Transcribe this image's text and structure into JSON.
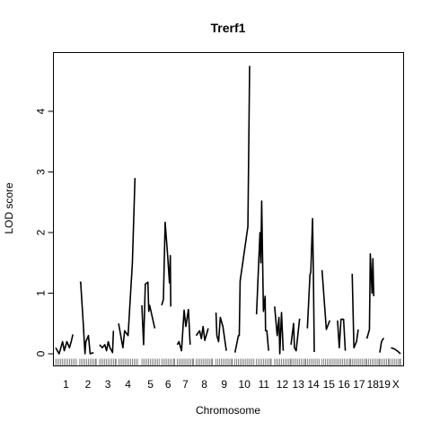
{
  "chart_data": {
    "type": "line",
    "title": "Trerf1",
    "xlabel": "Chromosome",
    "ylabel": "LOD score",
    "ylim": [
      -0.2,
      4.97
    ],
    "y_ticks": [
      0,
      1,
      2,
      3,
      4
    ],
    "grid": false,
    "legend": "none",
    "line_color": "#000000",
    "chromosomes": [
      {
        "label": "1",
        "start": 0,
        "end": 24,
        "points": [
          [
            0,
            0.1
          ],
          [
            4,
            0.0
          ],
          [
            8,
            0.2
          ],
          [
            10,
            0.05
          ],
          [
            13,
            0.2
          ],
          [
            16,
            0.1
          ],
          [
            18,
            0.2
          ],
          [
            20,
            0.32
          ]
        ]
      },
      {
        "label": "2",
        "start": 28,
        "end": 47,
        "points": [
          [
            0,
            1.18
          ],
          [
            1,
            1.18
          ],
          [
            4,
            0.5
          ],
          [
            6,
            0.0
          ],
          [
            7,
            0.2
          ],
          [
            10,
            0.3
          ],
          [
            12,
            0.0
          ],
          [
            16,
            0.02
          ]
        ]
      },
      {
        "label": "3",
        "start": 51,
        "end": 70,
        "points": [
          [
            0,
            0.15
          ],
          [
            3,
            0.1
          ],
          [
            6,
            0.15
          ],
          [
            8,
            0.05
          ],
          [
            10,
            0.2
          ],
          [
            12,
            0.1
          ],
          [
            15,
            0.02
          ],
          [
            16,
            0.38
          ]
        ]
      },
      {
        "label": "4",
        "start": 73,
        "end": 95,
        "points": [
          [
            0,
            0.5
          ],
          [
            5,
            0.1
          ],
          [
            7,
            0.38
          ],
          [
            11,
            0.3
          ],
          [
            16,
            1.5
          ],
          [
            19,
            2.9
          ]
        ]
      },
      {
        "label": "5",
        "start": 100,
        "end": 120,
        "points": [
          [
            0,
            0.8
          ],
          [
            2,
            0.15
          ],
          [
            4,
            1.15
          ],
          [
            7,
            1.18
          ],
          [
            8,
            0.7
          ],
          [
            9,
            0.8
          ],
          [
            15,
            0.42
          ]
        ]
      },
      {
        "label": "6",
        "start": 123,
        "end": 138,
        "points": [
          [
            0,
            0.8
          ],
          [
            2,
            0.9
          ],
          [
            4,
            2.17
          ],
          [
            7,
            1.6
          ],
          [
            9,
            1.17
          ],
          [
            10,
            1.62
          ],
          [
            10.5,
            0.78
          ]
        ]
      },
      {
        "label": "7",
        "start": 141,
        "end": 160,
        "points": [
          [
            0,
            0.15
          ],
          [
            2,
            0.2
          ],
          [
            5,
            0.05
          ],
          [
            8,
            0.72
          ],
          [
            10,
            0.45
          ],
          [
            13,
            0.73
          ],
          [
            15,
            0.15
          ]
        ]
      },
      {
        "label": "8",
        "start": 163,
        "end": 182,
        "points": [
          [
            0,
            0.3
          ],
          [
            4,
            0.38
          ],
          [
            6,
            0.25
          ],
          [
            8,
            0.45
          ],
          [
            10,
            0.22
          ],
          [
            14,
            0.42
          ]
        ]
      },
      {
        "label": "9",
        "start": 186,
        "end": 205,
        "points": [
          [
            0,
            0.68
          ],
          [
            1,
            0.3
          ],
          [
            3,
            0.2
          ],
          [
            5,
            0.6
          ],
          [
            8,
            0.45
          ],
          [
            12,
            0.05
          ]
        ]
      },
      {
        "label": "10",
        "start": 208,
        "end": 230,
        "points": [
          [
            0,
            0.02
          ],
          [
            4,
            0.3
          ],
          [
            5,
            0.3
          ],
          [
            6,
            1.2
          ],
          [
            15,
            2.1
          ],
          [
            17,
            4.75
          ]
        ]
      },
      {
        "label": "11",
        "start": 233,
        "end": 250,
        "points": [
          [
            0,
            0.65
          ],
          [
            4,
            2.0
          ],
          [
            5,
            1.5
          ],
          [
            6,
            2.52
          ],
          [
            8,
            0.7
          ],
          [
            10,
            0.95
          ],
          [
            10.5,
            0.38
          ],
          [
            12,
            0.38
          ],
          [
            14,
            0.05
          ]
        ]
      },
      {
        "label": "12",
        "start": 254,
        "end": 272,
        "points": [
          [
            0,
            0.78
          ],
          [
            3,
            0.3
          ],
          [
            5,
            0.6
          ],
          [
            6,
            0.0
          ],
          [
            8,
            0.68
          ],
          [
            10,
            0.05
          ]
        ]
      },
      {
        "label": "13",
        "start": 273,
        "end": 290,
        "points": [
          [
            0,
            0.15
          ],
          [
            3,
            0.5
          ],
          [
            4,
            0.1
          ],
          [
            6,
            0.05
          ],
          [
            10,
            0.58
          ]
        ]
      },
      {
        "label": "14",
        "start": 292,
        "end": 306,
        "points": [
          [
            0,
            0.42
          ],
          [
            3,
            1.3
          ],
          [
            4,
            1.35
          ],
          [
            6,
            2.23
          ],
          [
            7,
            1.3
          ],
          [
            8,
            0.03
          ]
        ]
      },
      {
        "label": "15",
        "start": 309,
        "end": 325,
        "points": [
          [
            0,
            1.38
          ],
          [
            5,
            0.4
          ],
          [
            9,
            0.55
          ]
        ]
      },
      {
        "label": "16",
        "start": 327,
        "end": 342,
        "points": [
          [
            0,
            0.55
          ],
          [
            2,
            0.1
          ],
          [
            4,
            0.57
          ],
          [
            7,
            0.57
          ],
          [
            9,
            0.05
          ]
        ]
      },
      {
        "label": "17",
        "start": 344,
        "end": 360,
        "points": [
          [
            0,
            1.32
          ],
          [
            2,
            0.1
          ],
          [
            5,
            0.2
          ],
          [
            7,
            0.4
          ]
        ]
      },
      {
        "label": "18",
        "start": 361,
        "end": 375,
        "points": [
          [
            0,
            0.25
          ],
          [
            3,
            0.4
          ],
          [
            4,
            1.65
          ],
          [
            6,
            1.0
          ],
          [
            7,
            1.57
          ],
          [
            8,
            0.95
          ]
        ]
      },
      {
        "label": "19",
        "start": 376,
        "end": 387,
        "points": [
          [
            0,
            0.02
          ],
          [
            2,
            0.2
          ],
          [
            4,
            0.25
          ],
          [
            5,
            0.25
          ]
        ]
      },
      {
        "label": "X",
        "start": 389,
        "end": 400,
        "points": [
          [
            0,
            0.1
          ],
          [
            4,
            0.08
          ],
          [
            8,
            0.04
          ],
          [
            11,
            0.0
          ]
        ]
      }
    ],
    "marker_positions": [
      0,
      2,
      4,
      6,
      8,
      10,
      12,
      14,
      16,
      18,
      20,
      22,
      24,
      28,
      30,
      32,
      34,
      36,
      38,
      40,
      42,
      44,
      46,
      47,
      51,
      53,
      55,
      57,
      59,
      61,
      63,
      65,
      67,
      69,
      70,
      73,
      75,
      77,
      79,
      81,
      83,
      85,
      87,
      89,
      91,
      93,
      95,
      100,
      102,
      104,
      106,
      108,
      110,
      112,
      114,
      116,
      118,
      120,
      123,
      125,
      127,
      129,
      131,
      133,
      135,
      137,
      138,
      141,
      143,
      145,
      147,
      149,
      151,
      153,
      155,
      157,
      159,
      160,
      163,
      165,
      167,
      169,
      171,
      173,
      175,
      177,
      179,
      181,
      182,
      186,
      188,
      190,
      192,
      194,
      196,
      198,
      200,
      202,
      204,
      205,
      208,
      210,
      212,
      214,
      216,
      218,
      220,
      222,
      224,
      226,
      228,
      230,
      233,
      235,
      237,
      239,
      241,
      243,
      245,
      247,
      249,
      250,
      254,
      256,
      258,
      260,
      262,
      264,
      266,
      268,
      270,
      272,
      273,
      275,
      277,
      279,
      281,
      283,
      285,
      287,
      289,
      290,
      292,
      294,
      296,
      298,
      300,
      302,
      304,
      306,
      309,
      311,
      313,
      315,
      317,
      319,
      321,
      323,
      325,
      327,
      329,
      331,
      333,
      335,
      337,
      339,
      341,
      342,
      344,
      346,
      348,
      350,
      352,
      354,
      356,
      358,
      360,
      361,
      363,
      365,
      367,
      369,
      371,
      373,
      375,
      376,
      378,
      380,
      382,
      384,
      386,
      387,
      389,
      391,
      393,
      395,
      397,
      399,
      400
    ]
  }
}
